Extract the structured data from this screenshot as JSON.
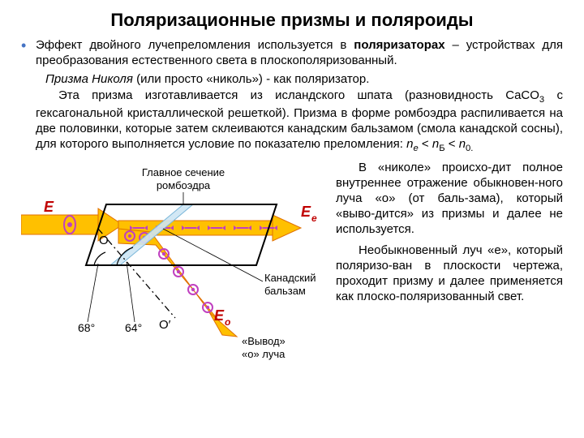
{
  "title": "Поляризационные призмы и поляроиды",
  "p1_pre": "Эффект двойного лучепреломления используется в ",
  "p1_bold": "поляризаторах",
  "p1_post": " – устройствах для преобразования естественного света в плоскополяризованный.",
  "p2_it": "Призма Николя",
  "p2_rest": " (или просто «николь») - как поляризатор.",
  "p3_a": "Эта призма изготавливается из исландского шпата (разновидность CaCO",
  "p3_sub": "3",
  "p3_b": " с гексагональной кристаллической решеткой). Призма в форме ромбоэдра распиливается на две половинки, которые затем склеиваются канадским бальзамом (смола канадской сосны), для которого выполняется условие по показателю преломления: ",
  "p3_ne": "n",
  "p3_ne_sub": "e",
  "p3_lt1": " < ",
  "p3_nb": "n",
  "p3_nb_sub": "Б",
  "p3_lt2": " < ",
  "p3_n0": "n",
  "p3_n0_sub": "0.",
  "right1": "В «николе» происхо-дит полное внутреннее отражение обыкновен-ного луча «o» (от баль-зама), который «выво-дится» из призмы и далее не используется.",
  "right2": "Необыкновенный луч «e», который поляризо-ван в плоскости чертежа, проходит призму и далее применяется как плоско-поляризованный свет.",
  "diagram": {
    "colors": {
      "arrow_fill": "#ffc000",
      "arrow_stroke": "#e07000",
      "prism_stroke": "#000000",
      "balsam_fill": "#cde6f4",
      "balsam_stroke": "#7ab6d9",
      "dot_fill": "#c040c0",
      "dot_ring": "#c040c0",
      "dot_center": "#ffffff",
      "text": "#000000",
      "red": "#c00000",
      "dash": "#000000"
    },
    "labels": {
      "main_section": "Главное сечение\nромбоэдра",
      "E": "E",
      "Ee": "E",
      "Ee_sub": "e",
      "Eo": "E",
      "Eo_sub": "o",
      "O": "O",
      "Op": "O′",
      "ang68": "68°",
      "ang64": "64°",
      "balsam": "Канадский\nбальзам",
      "out": "«Вывод»\n«o» луча"
    }
  }
}
